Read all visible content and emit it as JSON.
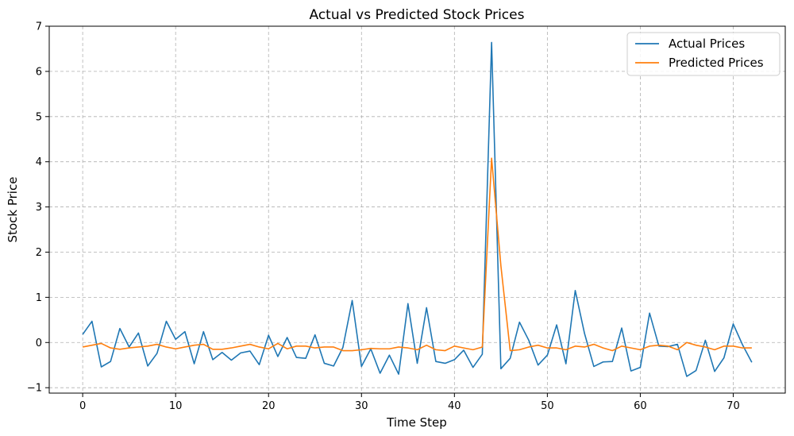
{
  "chart_data": {
    "type": "line",
    "title": "Actual vs Predicted Stock Prices",
    "xlabel": "Time Step",
    "ylabel": "Stock Price",
    "xlim": [
      -3.6,
      75.6
    ],
    "ylim": [
      -1.12,
      7.0
    ],
    "xticks": [
      0,
      10,
      20,
      30,
      40,
      50,
      60,
      70
    ],
    "yticks": [
      -1,
      0,
      1,
      2,
      3,
      4,
      5,
      6,
      7
    ],
    "grid": true,
    "legend_position": "top-right",
    "x": [
      0,
      1,
      2,
      3,
      4,
      5,
      6,
      7,
      8,
      9,
      10,
      11,
      12,
      13,
      14,
      15,
      16,
      17,
      18,
      19,
      20,
      21,
      22,
      23,
      24,
      25,
      26,
      27,
      28,
      29,
      30,
      31,
      32,
      33,
      34,
      35,
      36,
      37,
      38,
      39,
      40,
      41,
      42,
      43,
      44,
      45,
      46,
      47,
      48,
      49,
      50,
      51,
      52,
      53,
      54,
      55,
      56,
      57,
      58,
      59,
      60,
      61,
      62,
      63,
      64,
      65,
      66,
      67,
      68,
      69,
      70,
      71,
      72
    ],
    "series": [
      {
        "name": "Actual Prices",
        "color": "#1f77b4",
        "values": [
          0.18,
          0.47,
          -0.54,
          -0.42,
          0.31,
          -0.1,
          0.21,
          -0.52,
          -0.24,
          0.47,
          0.07,
          0.24,
          -0.47,
          0.24,
          -0.38,
          -0.22,
          -0.39,
          -0.23,
          -0.19,
          -0.49,
          0.16,
          -0.31,
          0.11,
          -0.33,
          -0.35,
          0.17,
          -0.46,
          -0.52,
          -0.11,
          0.93,
          -0.53,
          -0.14,
          -0.68,
          -0.28,
          -0.7,
          0.86,
          -0.46,
          0.77,
          -0.42,
          -0.46,
          -0.38,
          -0.17,
          -0.55,
          -0.26,
          6.64,
          -0.58,
          -0.35,
          0.45,
          0.05,
          -0.5,
          -0.28,
          0.39,
          -0.47,
          1.15,
          0.2,
          -0.53,
          -0.43,
          -0.42,
          0.32,
          -0.63,
          -0.55,
          0.65,
          -0.08,
          -0.09,
          -0.04,
          -0.75,
          -0.62,
          0.05,
          -0.64,
          -0.34,
          0.41,
          -0.05,
          -0.44
        ]
      },
      {
        "name": "Predicted Prices",
        "color": "#ff7f0e",
        "values": [
          -0.1,
          -0.06,
          -0.02,
          -0.12,
          -0.15,
          -0.12,
          -0.1,
          -0.08,
          -0.04,
          -0.1,
          -0.14,
          -0.1,
          -0.06,
          -0.04,
          -0.15,
          -0.15,
          -0.12,
          -0.08,
          -0.04,
          -0.1,
          -0.14,
          -0.02,
          -0.14,
          -0.08,
          -0.08,
          -0.12,
          -0.1,
          -0.1,
          -0.18,
          -0.18,
          -0.16,
          -0.13,
          -0.14,
          -0.14,
          -0.1,
          -0.12,
          -0.16,
          -0.06,
          -0.16,
          -0.18,
          -0.08,
          -0.12,
          -0.16,
          -0.1,
          4.08,
          1.7,
          -0.18,
          -0.16,
          -0.1,
          -0.06,
          -0.12,
          -0.12,
          -0.16,
          -0.08,
          -0.1,
          -0.04,
          -0.12,
          -0.18,
          -0.08,
          -0.12,
          -0.16,
          -0.08,
          -0.06,
          -0.08,
          -0.16,
          0.0,
          -0.06,
          -0.1,
          -0.16,
          -0.08,
          -0.08,
          -0.12,
          -0.12
        ]
      }
    ]
  }
}
